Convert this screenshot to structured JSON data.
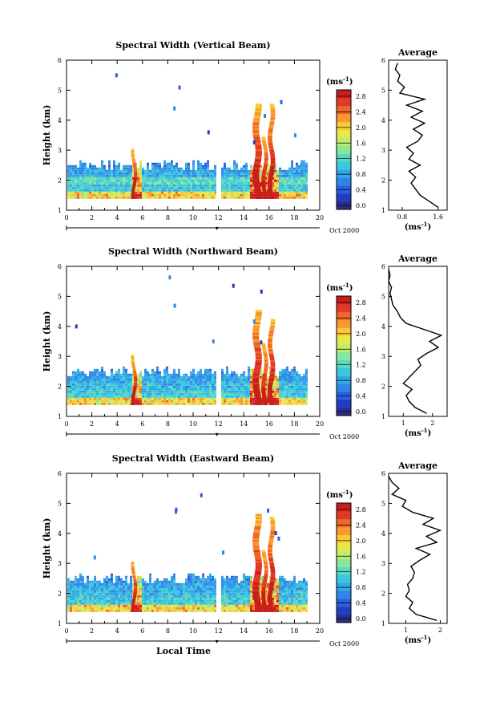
{
  "chart_data": [
    {
      "type": "heatmap",
      "title": "Spectral Width (Vertical Beam)",
      "ylabel": "Height (km)",
      "x_ticks": [
        "0",
        "2",
        "4",
        "6",
        "8",
        "10",
        "12",
        "14",
        "16",
        "18",
        "20"
      ],
      "y_ticks": [
        "1",
        "2",
        "3",
        "4",
        "5",
        "6"
      ],
      "xlim": [
        0,
        20
      ],
      "ylim": [
        1,
        6
      ],
      "date_label": "Oct 2000",
      "colorbar": {
        "unit": "(ms",
        "unit_exp": "-1",
        "unit_close": ")",
        "ticks": [
          "0.0",
          "0.4",
          "0.8",
          "1.2",
          "1.6",
          "2.0",
          "2.4",
          "2.8"
        ],
        "range": [
          0,
          3.0
        ]
      },
      "average": {
        "title": "Average",
        "xlabel": "(ms",
        "xlabel_exp": "-1",
        "xlabel_close": ")",
        "x_ticks": [
          "0.8",
          "1.6"
        ],
        "x_tick_values": [
          0.8,
          1.6
        ],
        "xlim": [
          0.5,
          1.8
        ],
        "heights": [
          1.1,
          1.3,
          1.5,
          1.7,
          1.9,
          2.1,
          2.3,
          2.5,
          2.7,
          2.9,
          3.1,
          3.3,
          3.5,
          3.7,
          3.9,
          4.1,
          4.3,
          4.5,
          4.7,
          4.9,
          5.1,
          5.3,
          5.5,
          5.7,
          5.9
        ],
        "values": [
          1.6,
          1.4,
          1.2,
          1.1,
          1.0,
          1.1,
          0.95,
          1.2,
          0.95,
          1.05,
          0.9,
          1.15,
          1.25,
          1.05,
          1.3,
          1.0,
          1.25,
          0.9,
          1.3,
          0.75,
          0.85,
          0.7,
          0.75,
          0.65,
          0.7
        ]
      }
    },
    {
      "type": "heatmap",
      "title": "Spectral Width (Northward Beam)",
      "ylabel": "Height (km)",
      "x_ticks": [
        "0",
        "2",
        "4",
        "6",
        "8",
        "10",
        "12",
        "14",
        "16",
        "18",
        "20"
      ],
      "y_ticks": [
        "1",
        "2",
        "3",
        "4",
        "5",
        "6"
      ],
      "xlim": [
        0,
        20
      ],
      "ylim": [
        1,
        6
      ],
      "date_label": "Oct 2000",
      "colorbar": {
        "unit": "(ms",
        "unit_exp": "-1",
        "unit_close": ")",
        "ticks": [
          "0.0",
          "0.4",
          "0.8",
          "1.2",
          "1.6",
          "2.0",
          "2.4",
          "2.8"
        ],
        "range": [
          0,
          3.0
        ]
      },
      "average": {
        "title": "Average",
        "xlabel": "(ms",
        "xlabel_exp": "-1",
        "xlabel_close": ")",
        "x_ticks": [
          "1",
          "2"
        ],
        "x_tick_values": [
          1,
          2
        ],
        "xlim": [
          0.5,
          2.5
        ],
        "heights": [
          1.1,
          1.3,
          1.5,
          1.7,
          1.9,
          2.1,
          2.3,
          2.5,
          2.7,
          2.9,
          3.1,
          3.3,
          3.5,
          3.7,
          3.9,
          4.1,
          4.3,
          4.5,
          4.7,
          4.9,
          5.1,
          5.3,
          5.5,
          5.7,
          5.9
        ],
        "values": [
          1.8,
          1.4,
          1.2,
          1.1,
          1.3,
          1.0,
          1.2,
          1.4,
          1.6,
          1.5,
          1.8,
          2.2,
          1.9,
          2.3,
          1.7,
          1.1,
          0.9,
          0.8,
          0.65,
          0.6,
          0.55,
          0.6,
          0.5,
          0.55,
          0.5
        ]
      }
    },
    {
      "type": "heatmap",
      "title": "Spectral Width (Eastward Beam)",
      "ylabel": "Height (km)",
      "xlabel": "Local Time",
      "x_ticks": [
        "0",
        "2",
        "4",
        "6",
        "8",
        "10",
        "12",
        "14",
        "16",
        "18",
        "20"
      ],
      "y_ticks": [
        "1",
        "2",
        "3",
        "4",
        "5",
        "6"
      ],
      "xlim": [
        0,
        20
      ],
      "ylim": [
        1,
        6
      ],
      "date_label": "Oct 2000",
      "colorbar": {
        "unit": "(ms",
        "unit_exp": "-1",
        "unit_close": ")",
        "ticks": [
          "0.0",
          "0.4",
          "0.8",
          "1.2",
          "1.6",
          "2.0",
          "2.4",
          "2.8"
        ],
        "range": [
          0,
          3.0
        ]
      },
      "average": {
        "title": "Average",
        "xlabel": "(ms",
        "xlabel_exp": "-1",
        "xlabel_close": ")",
        "x_ticks": [
          "1",
          "2"
        ],
        "x_tick_values": [
          1,
          2
        ],
        "xlim": [
          0.5,
          2.2
        ],
        "heights": [
          1.1,
          1.3,
          1.5,
          1.7,
          1.9,
          2.1,
          2.3,
          2.5,
          2.7,
          2.9,
          3.1,
          3.3,
          3.5,
          3.7,
          3.9,
          4.1,
          4.3,
          4.5,
          4.7,
          4.9,
          5.1,
          5.3,
          5.5,
          5.7,
          5.9
        ],
        "values": [
          1.9,
          1.3,
          1.1,
          1.2,
          1.0,
          1.1,
          1.05,
          1.2,
          1.25,
          1.15,
          1.4,
          1.7,
          1.3,
          1.9,
          1.6,
          2.0,
          1.5,
          1.8,
          1.2,
          0.9,
          1.0,
          0.6,
          0.8,
          0.6,
          0.5
        ]
      }
    }
  ],
  "colors": {
    "scale": [
      "#2b2d8c",
      "#1f3fc0",
      "#2c5fe0",
      "#2f86e8",
      "#33a8e6",
      "#3cc8dc",
      "#5ad8c0",
      "#8ae69a",
      "#bfee6a",
      "#e8e84a",
      "#f8c838",
      "#f89a30",
      "#f06828",
      "#e03a2a",
      "#c81e1e"
    ]
  }
}
